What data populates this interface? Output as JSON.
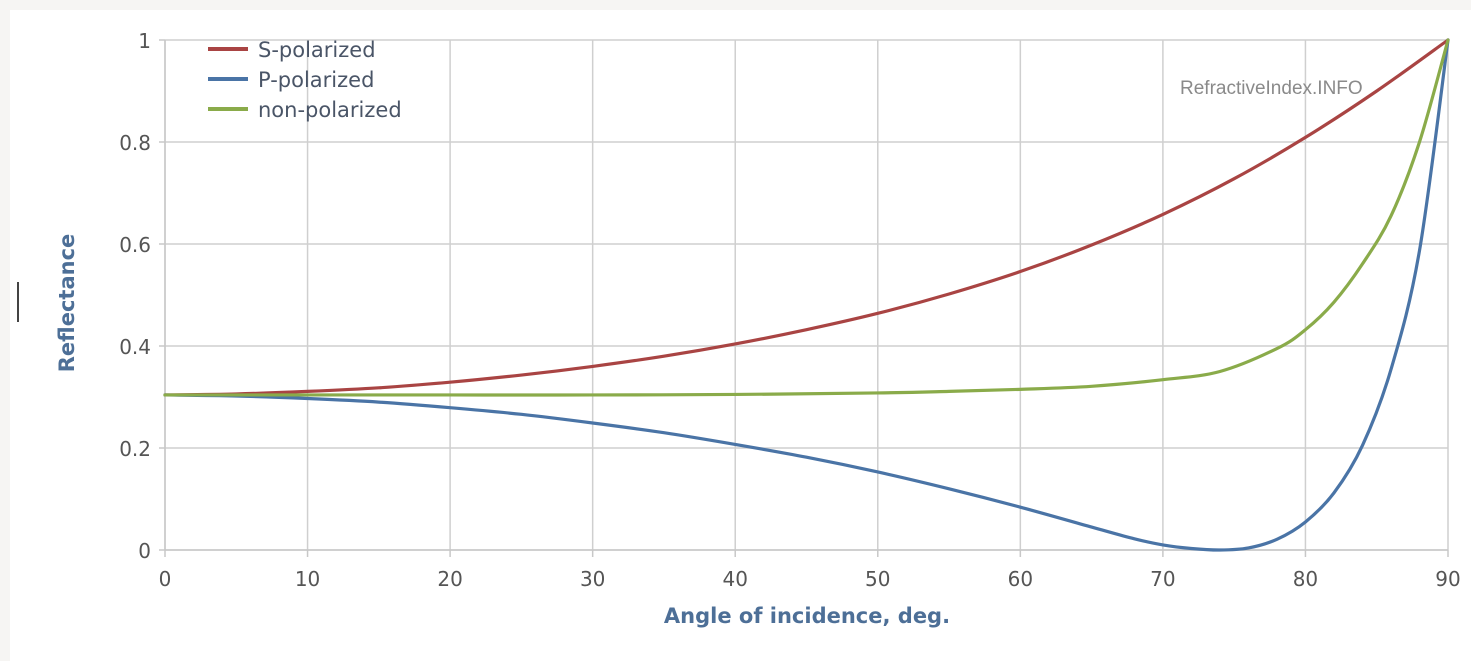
{
  "chart_data": {
    "type": "line",
    "xlabel": "Angle of incidence, deg.",
    "ylabel": "Reflectance",
    "xlim": [
      0,
      90
    ],
    "ylim": [
      0,
      1
    ],
    "xticks": [
      0,
      10,
      20,
      30,
      40,
      50,
      60,
      70,
      80,
      90
    ],
    "yticks": [
      0,
      0.2,
      0.4,
      0.6,
      0.8,
      1
    ],
    "ytick_labels": [
      "0",
      "0.2",
      "0.4",
      "0.6",
      "0.8",
      "1"
    ],
    "grid": true,
    "legend_position": "top-left",
    "watermark": "RefractiveIndex.INFO",
    "series": [
      {
        "name": "S-polarized",
        "color": "#a94443",
        "x": [
          0,
          5,
          10,
          15,
          20,
          25,
          30,
          35,
          40,
          45,
          50,
          55,
          60,
          65,
          70,
          75,
          80,
          85,
          90
        ],
        "y": [
          0.304,
          0.306,
          0.311,
          0.318,
          0.329,
          0.343,
          0.36,
          0.38,
          0.404,
          0.432,
          0.464,
          0.502,
          0.546,
          0.598,
          0.658,
          0.728,
          0.809,
          0.9,
          1.0
        ]
      },
      {
        "name": "P-polarized",
        "color": "#4a74a6",
        "x": [
          0,
          5,
          10,
          15,
          20,
          25,
          30,
          35,
          40,
          45,
          50,
          55,
          60,
          65,
          68,
          70,
          72,
          74,
          76,
          78,
          80,
          82,
          84,
          86,
          88,
          90
        ],
        "y": [
          0.304,
          0.302,
          0.297,
          0.29,
          0.279,
          0.266,
          0.249,
          0.23,
          0.207,
          0.182,
          0.153,
          0.12,
          0.084,
          0.045,
          0.022,
          0.01,
          0.003,
          0.0,
          0.004,
          0.021,
          0.055,
          0.112,
          0.205,
          0.354,
          0.587,
          1.0
        ]
      },
      {
        "name": "non-polarized",
        "color": "#8aab4a",
        "x": [
          0,
          10,
          20,
          30,
          40,
          50,
          55,
          60,
          65,
          70,
          74,
          78,
          80,
          82,
          84,
          86,
          88,
          90
        ],
        "y": [
          0.304,
          0.304,
          0.304,
          0.304,
          0.305,
          0.308,
          0.311,
          0.315,
          0.321,
          0.334,
          0.35,
          0.395,
          0.432,
          0.486,
          0.561,
          0.655,
          0.8,
          1.0
        ]
      }
    ]
  }
}
